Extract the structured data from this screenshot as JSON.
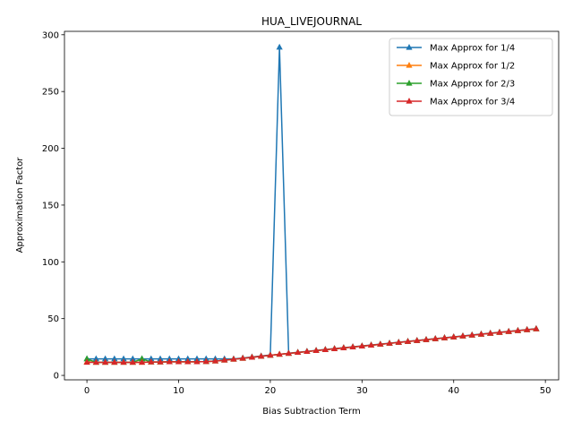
{
  "chart_data": {
    "type": "line",
    "title": "HUA_LIVEJOURNAL",
    "xlabel": "Bias Subtraction Term",
    "ylabel": "Approximation Factor",
    "xlim": [
      -2.45,
      51.45
    ],
    "ylim": [
      -3.9,
      303.0
    ],
    "xticks": [
      0,
      10,
      20,
      30,
      40,
      50
    ],
    "yticks": [
      0,
      50,
      100,
      150,
      200,
      250,
      300
    ],
    "grid": false,
    "legend": "top-right",
    "marker": "triangle-up",
    "series": [
      {
        "name": "Max Approx for 1/4",
        "color": "#1f77b4",
        "x": [
          0,
          1,
          2,
          3,
          4,
          5,
          6,
          7,
          8,
          9,
          10,
          11,
          12,
          13,
          14,
          15,
          16,
          17,
          18,
          19,
          20,
          21,
          22,
          23,
          24,
          25,
          26,
          27,
          28,
          29,
          30,
          31,
          32,
          33,
          34,
          35,
          36,
          37,
          38,
          39,
          40,
          41,
          42,
          43,
          44,
          45,
          46,
          47,
          48,
          49
        ],
        "y": [
          14.5,
          14.5,
          14.5,
          14.5,
          14.5,
          14.5,
          14.5,
          14.5,
          14.5,
          14.5,
          14.5,
          14.5,
          14.5,
          14.5,
          14.5,
          14.5,
          14.5,
          15.3,
          16.2,
          17.1,
          18,
          289,
          19.6,
          20.4,
          21.2,
          22,
          22.8,
          23.6,
          24.4,
          25.2,
          26,
          26.8,
          27.6,
          28.4,
          29.2,
          30,
          30.8,
          31.6,
          32.4,
          33.2,
          34,
          34.8,
          35.6,
          36.4,
          37.2,
          38,
          38.8,
          39.6,
          40.4,
          41.2
        ]
      },
      {
        "name": "Max Approx for 1/2",
        "color": "#ff7f0e",
        "x": [
          0,
          1,
          2,
          3,
          4,
          5,
          6,
          7,
          8,
          9,
          10,
          11,
          12,
          13,
          14,
          15,
          16,
          17,
          18,
          19,
          20,
          21,
          22,
          23,
          24,
          25,
          26,
          27,
          28,
          29,
          30,
          31,
          32,
          33,
          34,
          35,
          36,
          37,
          38,
          39,
          40,
          41,
          42,
          43,
          44,
          45,
          46,
          47,
          48,
          49
        ],
        "y": [
          12,
          11.5,
          11.5,
          11.5,
          11.5,
          11.5,
          11.5,
          11.8,
          11.8,
          12,
          12,
          12,
          12,
          12.2,
          12.6,
          13.4,
          14.2,
          15,
          15.9,
          16.8,
          17.7,
          18.6,
          19.4,
          20.2,
          21,
          21.8,
          22.6,
          23.4,
          24.2,
          25,
          25.8,
          26.6,
          27.4,
          28.2,
          29,
          29.8,
          30.6,
          31.4,
          32.2,
          33,
          33.8,
          34.6,
          35.4,
          36.2,
          37,
          37.8,
          38.6,
          39.4,
          40.2,
          41
        ]
      },
      {
        "name": "Max Approx for 2/3",
        "color": "#2ca02c",
        "x": [
          0,
          1,
          2,
          3,
          4,
          5,
          6,
          7,
          8,
          9,
          10,
          11,
          12,
          13,
          14,
          15,
          16,
          17,
          18,
          19,
          20,
          21,
          22,
          23,
          24,
          25,
          26,
          27,
          28,
          29,
          30,
          31,
          32,
          33,
          34,
          35,
          36,
          37,
          38,
          39,
          40,
          41,
          42,
          43,
          44,
          45,
          46,
          47,
          48,
          49
        ],
        "y": [
          14.5,
          11.5,
          11.5,
          11.5,
          11.5,
          11.5,
          14.5,
          11.8,
          11.8,
          12,
          12,
          12,
          12,
          12.2,
          12.6,
          13.4,
          14.2,
          15,
          15.9,
          16.8,
          17.7,
          18.6,
          19.4,
          20.2,
          21,
          21.8,
          22.6,
          23.4,
          24.2,
          25,
          25.8,
          26.6,
          27.4,
          28.2,
          29,
          29.8,
          30.6,
          31.4,
          32.2,
          33,
          33.8,
          34.6,
          35.4,
          36.2,
          37,
          37.8,
          38.6,
          39.4,
          40.2,
          41
        ]
      },
      {
        "name": "Max Approx for 3/4",
        "color": "#d62728",
        "x": [
          0,
          1,
          2,
          3,
          4,
          5,
          6,
          7,
          8,
          9,
          10,
          11,
          12,
          13,
          14,
          15,
          16,
          17,
          18,
          19,
          20,
          21,
          22,
          23,
          24,
          25,
          26,
          27,
          28,
          29,
          30,
          31,
          32,
          33,
          34,
          35,
          36,
          37,
          38,
          39,
          40,
          41,
          42,
          43,
          44,
          45,
          46,
          47,
          48,
          49
        ],
        "y": [
          11.5,
          11.5,
          11.5,
          11.5,
          11.5,
          11.5,
          11.5,
          11.8,
          11.8,
          12,
          12,
          12,
          12,
          12.2,
          12.6,
          13.4,
          14.2,
          15,
          15.9,
          16.8,
          17.7,
          18.6,
          19.4,
          20.2,
          21,
          21.8,
          22.6,
          23.4,
          24.2,
          25,
          25.8,
          26.6,
          27.4,
          28.2,
          29,
          29.8,
          30.6,
          31.4,
          32.2,
          33,
          33.8,
          34.6,
          35.4,
          36.2,
          37,
          37.8,
          38.6,
          39.4,
          40.2,
          41
        ]
      }
    ]
  }
}
